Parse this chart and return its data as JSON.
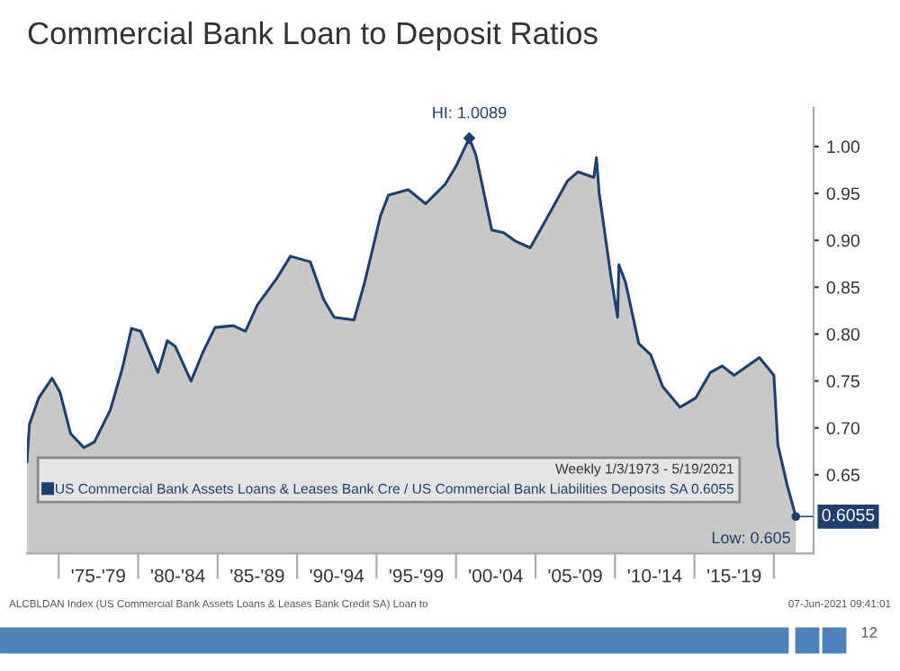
{
  "chart_data": {
    "type": "area",
    "title": "Commercial Bank Loan to Deposit Ratios",
    "x": [
      "1973-01-03",
      "1973-03",
      "1973-10",
      "1974-08",
      "1975-02",
      "1975-10",
      "1976-08",
      "1977-04",
      "1978-04",
      "1979-01",
      "1979-08",
      "1980-03",
      "1981-04",
      "1981-11",
      "1982-05",
      "1983-05",
      "1984-02",
      "1984-11",
      "1986-01",
      "1986-10",
      "1987-07",
      "1988-09",
      "1989-08",
      "1990-11",
      "1991-09",
      "1992-05",
      "1993-08",
      "1994-04",
      "1995-04",
      "1995-10",
      "1997-01",
      "1998-02",
      "1999-05",
      "2000-01",
      "2000-11",
      "2001-04",
      "2002-04",
      "2003-01",
      "2003-10",
      "2004-09",
      "2005-07",
      "2007-01",
      "2007-09",
      "2008-09",
      "2008-11",
      "2009-01",
      "2009-10",
      "2010-03",
      "2010-04",
      "2010-09",
      "2011-07",
      "2012-04",
      "2013-01",
      "2014-02",
      "2015-02",
      "2016-01",
      "2016-10",
      "2017-07",
      "2019-02",
      "2020-01",
      "2020-04",
      "2020-11",
      "2021-05-19"
    ],
    "series": [
      {
        "name": "US Commercial Bank Assets Loans & Leases Bank Cre / US Commercial Bank Liabilities Deposits SA 0.6055",
        "color": "#1f3f6e",
        "values": [
          0.664,
          0.704,
          0.732,
          0.753,
          0.738,
          0.694,
          0.679,
          0.685,
          0.719,
          0.763,
          0.806,
          0.803,
          0.759,
          0.793,
          0.787,
          0.75,
          0.781,
          0.807,
          0.809,
          0.803,
          0.831,
          0.858,
          0.883,
          0.877,
          0.837,
          0.818,
          0.815,
          0.855,
          0.926,
          0.948,
          0.954,
          0.939,
          0.96,
          0.979,
          1.0089,
          0.991,
          0.911,
          0.908,
          0.899,
          0.892,
          0.917,
          0.963,
          0.973,
          0.967,
          0.988,
          0.951,
          0.861,
          0.818,
          0.874,
          0.855,
          0.79,
          0.778,
          0.744,
          0.722,
          0.732,
          0.759,
          0.766,
          0.756,
          0.775,
          0.756,
          0.682,
          0.639,
          0.6055
        ]
      }
    ],
    "legend_title": "Weekly 1/3/1973 - 5/19/2021",
    "legend": "bottom left",
    "xlim": [
      "1973-01-03",
      "2022-07"
    ],
    "ylim": [
      0.566,
      1.041
    ],
    "xticks": [
      {
        "value": "1975",
        "label": null
      },
      {
        "value": "1977-07",
        "label": "'75-'79"
      },
      {
        "value": "1980",
        "label": null
      },
      {
        "value": "1982-07",
        "label": "'80-'84"
      },
      {
        "value": "1985",
        "label": null
      },
      {
        "value": "1987-07",
        "label": "'85-'89"
      },
      {
        "value": "1990",
        "label": null
      },
      {
        "value": "1992-07",
        "label": "'90-'94"
      },
      {
        "value": "1995",
        "label": null
      },
      {
        "value": "1997-07",
        "label": "'95-'99"
      },
      {
        "value": "2000",
        "label": null
      },
      {
        "value": "2002-07",
        "label": "'00-'04"
      },
      {
        "value": "2005",
        "label": null
      },
      {
        "value": "2007-07",
        "label": "'05-'09"
      },
      {
        "value": "2010",
        "label": null
      },
      {
        "value": "2012-07",
        "label": "'10-'14"
      },
      {
        "value": "2015",
        "label": null
      },
      {
        "value": "2017-07",
        "label": "'15-'19"
      },
      {
        "value": "2020",
        "label": null
      }
    ],
    "yticks": [
      {
        "value": 0.65,
        "label": "0.65"
      },
      {
        "value": 0.7,
        "label": "0.70"
      },
      {
        "value": 0.75,
        "label": "0.75"
      },
      {
        "value": 0.8,
        "label": "0.80"
      },
      {
        "value": 0.85,
        "label": "0.85"
      },
      {
        "value": 0.9,
        "label": "0.90"
      },
      {
        "value": 0.95,
        "label": "0.95"
      },
      {
        "value": 1.0,
        "label": "1.00"
      }
    ],
    "grid": false,
    "annotations": [
      {
        "text": "HI: 1.0089",
        "x": "2000-11",
        "y": 1.0089
      },
      {
        "text": "Low: 0.605",
        "x": "2021-05-19",
        "y": 0.6055
      },
      {
        "text": "0.6055",
        "x": "2021-05-19",
        "y": 0.6055
      },
      "ALCBLDAN Index (US Commercial Bank Assets Loans & Leases Bank Credit SA) Loan to",
      "07-Jun-2021 09:41:01",
      "12"
    ]
  }
}
